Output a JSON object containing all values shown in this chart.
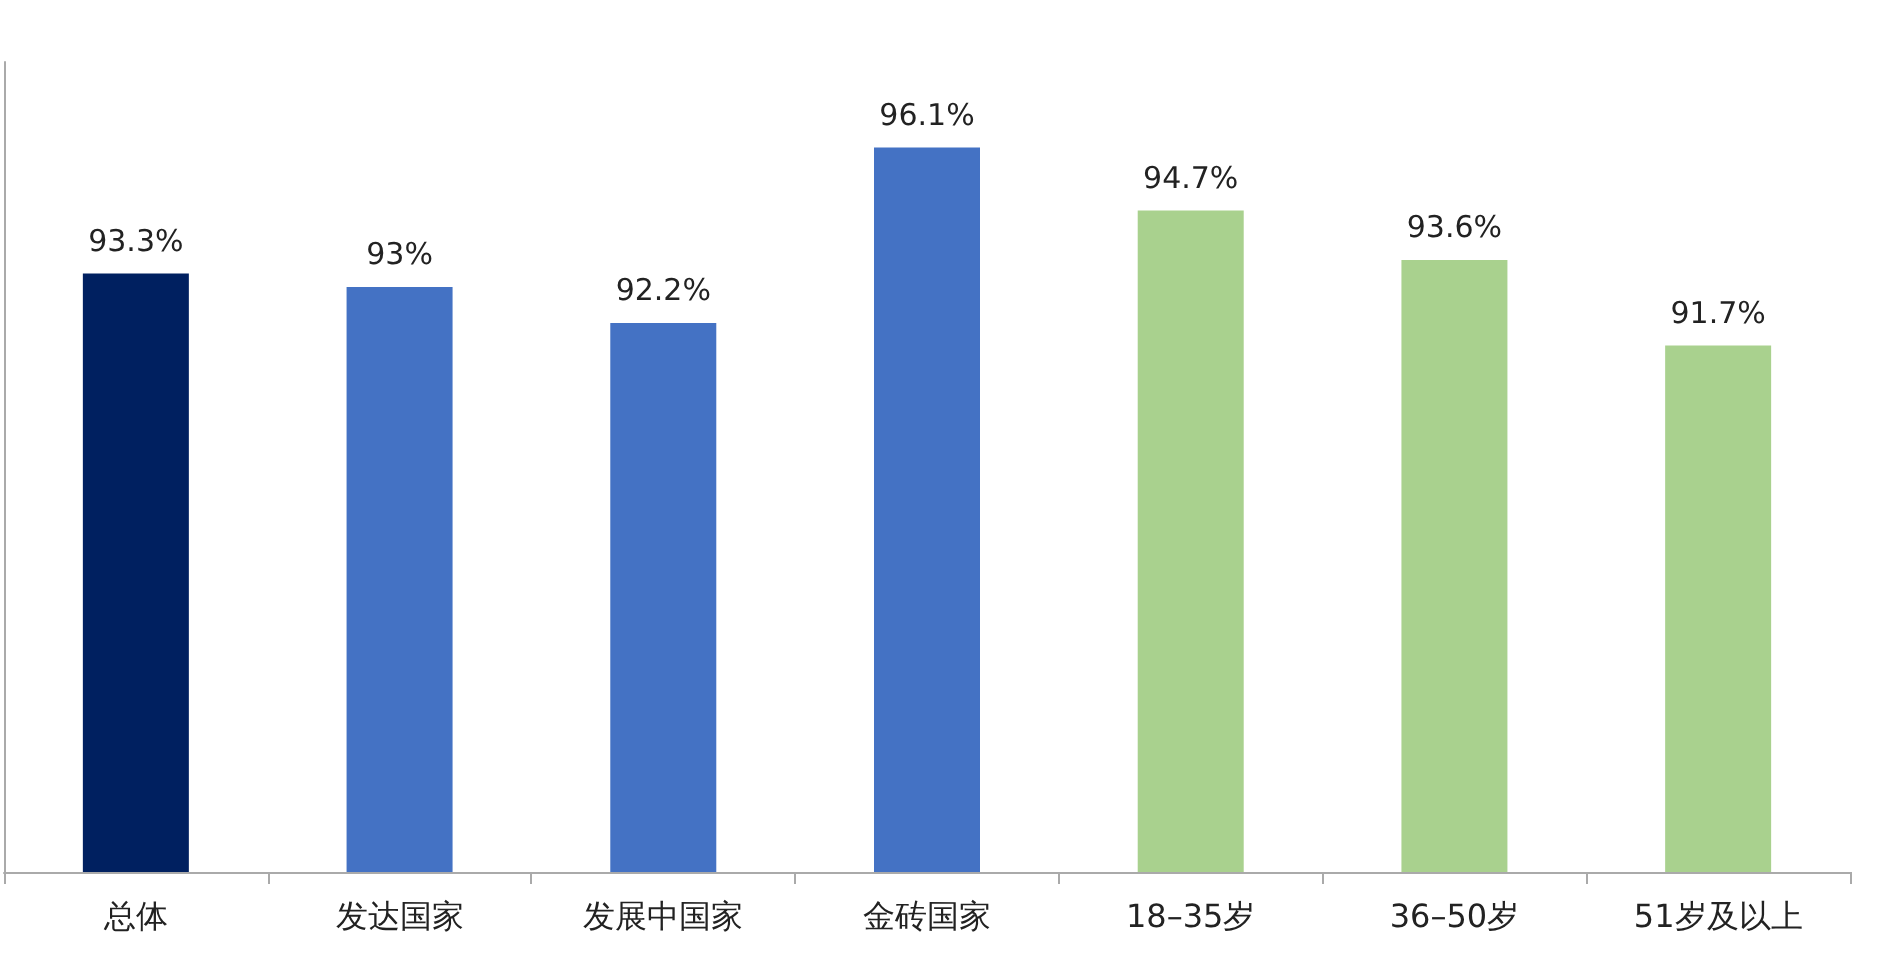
{
  "chart_data": {
    "type": "bar",
    "categories": [
      "总体",
      "发达国家",
      "发展中国家",
      "金砖国家",
      "18–35岁",
      "36–50岁",
      "51岁及以上"
    ],
    "values": [
      93.3,
      93,
      92.2,
      96.1,
      94.7,
      93.6,
      91.7
    ],
    "colors": [
      "#002060",
      "#4472c4",
      "#4472c4",
      "#4472c4",
      "#a9d18e",
      "#a9d18e",
      "#a9d18e"
    ],
    "value_labels": [
      "93.3%",
      "93%",
      "92.2%",
      "96.1%",
      "94.7%",
      "93.6%",
      "91.7%"
    ],
    "ylim": [
      80,
      98
    ],
    "tick_labels": "x",
    "grid": false
  }
}
